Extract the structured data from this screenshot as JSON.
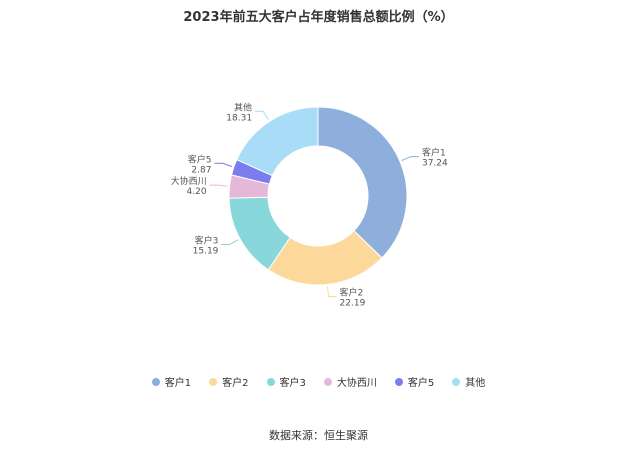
{
  "chart_data": {
    "type": "pie",
    "variant": "donut",
    "title": "2023年前五大客户占年度销售总额比例（%）",
    "slices": [
      {
        "label": "客户1",
        "value": 37.24,
        "value_text": "37.24",
        "color": "#8eaedc"
      },
      {
        "label": "客户2",
        "value": 22.19,
        "value_text": "22.19",
        "color": "#fdd89b"
      },
      {
        "label": "客户3",
        "value": 15.19,
        "value_text": "15.19",
        "color": "#88d8db"
      },
      {
        "label": "大协西川",
        "value": 4.2,
        "value_text": "4.20",
        "color": "#e5b8d8"
      },
      {
        "label": "客户5",
        "value": 2.87,
        "value_text": "2.87",
        "color": "#7a7cf0"
      },
      {
        "label": "其他",
        "value": 18.31,
        "value_text": "18.31",
        "color": "#a8dcf7"
      }
    ],
    "legend_position": "bottom"
  },
  "source": "数据来源：恒生聚源"
}
